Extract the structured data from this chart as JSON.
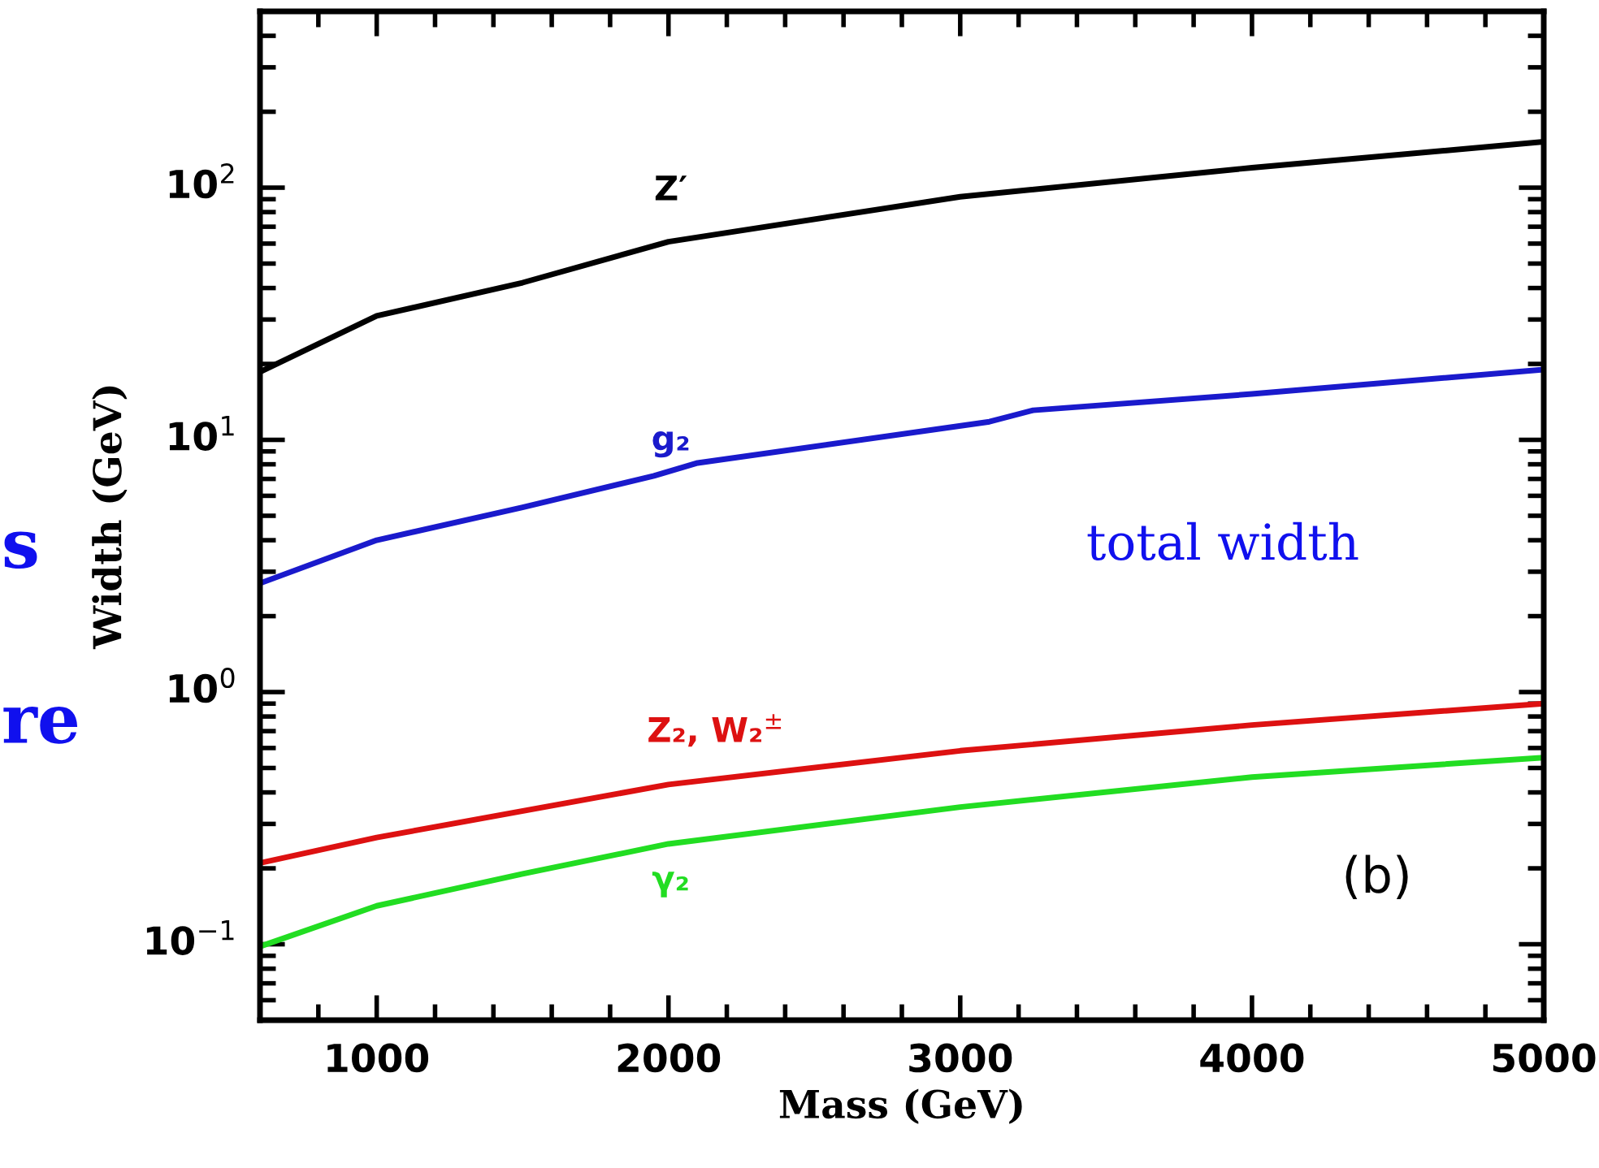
{
  "chart_data": {
    "type": "line",
    "xlabel": "Mass (GeV)",
    "ylabel": "Width (GeV)",
    "log": "y",
    "xlim": [
      600,
      5000
    ],
    "ylim": [
      0.05,
      500
    ],
    "xticks": [
      1000,
      2000,
      3000,
      4000,
      5000
    ],
    "yticks": [
      {
        "value": 0.1,
        "label": "10$^{−1}$"
      },
      {
        "value": 1,
        "label": "10$^{0}$"
      },
      {
        "value": 10,
        "label": "10$^{1}$"
      },
      {
        "value": 100,
        "label": "10$^{2}$"
      }
    ],
    "grid": false,
    "marker": "none",
    "line_style": "solid",
    "series": [
      {
        "color": "#000000",
        "x": [
          600,
          1000,
          1500,
          2000,
          3000,
          4000,
          5000
        ],
        "values": [
          18.6,
          31,
          42,
          61,
          92,
          120,
          152
        ]
      },
      {
        "color": "#1a1acc",
        "x": [
          600,
          1000,
          1500,
          1950,
          2100,
          3100,
          3250,
          4000,
          5000
        ],
        "values": [
          2.7,
          4.0,
          5.4,
          7.2,
          8.1,
          11.8,
          13.1,
          15.2,
          19
        ]
      },
      {
        "color": "#dd1111",
        "x": [
          600,
          1000,
          2000,
          3000,
          4000,
          5000
        ],
        "values": [
          0.21,
          0.265,
          0.43,
          0.585,
          0.74,
          0.9
        ]
      },
      {
        "color": "#22dd22",
        "x": [
          600,
          1000,
          1500,
          2000,
          3000,
          4000,
          5000
        ],
        "values": [
          0.098,
          0.142,
          0.19,
          0.25,
          0.35,
          0.46,
          0.55
        ]
      }
    ],
    "annotations": [
      "Z′",
      "g₂",
      "Z₂, W₂$^{±}$",
      "γ₂",
      "total width",
      "(b)",
      "s",
      "re"
    ]
  }
}
